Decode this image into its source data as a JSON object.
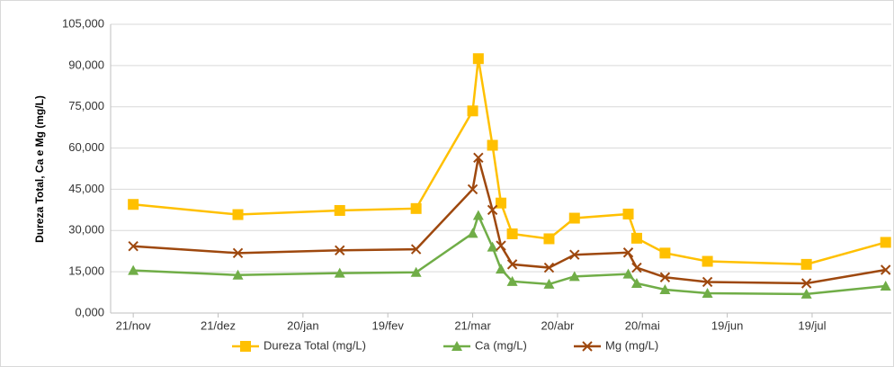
{
  "chart_data": {
    "type": "line",
    "y_label": "Dureza Total, Ca e Mg (mg/L)",
    "x": [
      0,
      37,
      73,
      100,
      120,
      122,
      127,
      130,
      134,
      147,
      156,
      175,
      178,
      188,
      203,
      238,
      266
    ],
    "series": [
      {
        "name": "Dureza Total (mg/L)",
        "color": "#ffc000",
        "marker": "square",
        "values": [
          39500,
          35800,
          37300,
          38000,
          73500,
          92500,
          61000,
          40000,
          28800,
          27000,
          34500,
          36000,
          27200,
          21800,
          18800,
          17700,
          25700
        ]
      },
      {
        "name": "Ca (mg/L)",
        "color": "#70ad47",
        "marker": "triangle",
        "values": [
          15500,
          13800,
          14500,
          14800,
          29000,
          35500,
          24000,
          16000,
          11500,
          10500,
          13300,
          14200,
          10800,
          8500,
          7200,
          6900,
          9800
        ]
      },
      {
        "name": "Mg (mg/L)",
        "color": "#9e480e",
        "marker": "x",
        "values": [
          24300,
          21800,
          22800,
          23200,
          45000,
          56500,
          37500,
          24500,
          17700,
          16500,
          21200,
          22000,
          16500,
          13000,
          11300,
          10800,
          15700
        ]
      }
    ],
    "xlim": [
      -8,
      268
    ],
    "xticks": [
      {
        "value": 0,
        "label": "21/nov"
      },
      {
        "value": 30,
        "label": "21/dez"
      },
      {
        "value": 60,
        "label": "20/jan"
      },
      {
        "value": 90,
        "label": "19/fev"
      },
      {
        "value": 120,
        "label": "21/mar"
      },
      {
        "value": 150,
        "label": "20/abr"
      },
      {
        "value": 180,
        "label": "20/mai"
      },
      {
        "value": 210,
        "label": "19/jun"
      },
      {
        "value": 240,
        "label": "19/jul"
      }
    ],
    "ylim": [
      0,
      105000
    ],
    "yticks": [
      {
        "value": 0,
        "label": "0,000"
      },
      {
        "value": 15000,
        "label": "15,000"
      },
      {
        "value": 30000,
        "label": "30,000"
      },
      {
        "value": 45000,
        "label": "45,000"
      },
      {
        "value": 60000,
        "label": "60,000"
      },
      {
        "value": 75000,
        "label": "75,000"
      },
      {
        "value": 90000,
        "label": "90,000"
      },
      {
        "value": 105000,
        "label": "105,000"
      }
    ],
    "grid": true,
    "legend": "bottom"
  }
}
